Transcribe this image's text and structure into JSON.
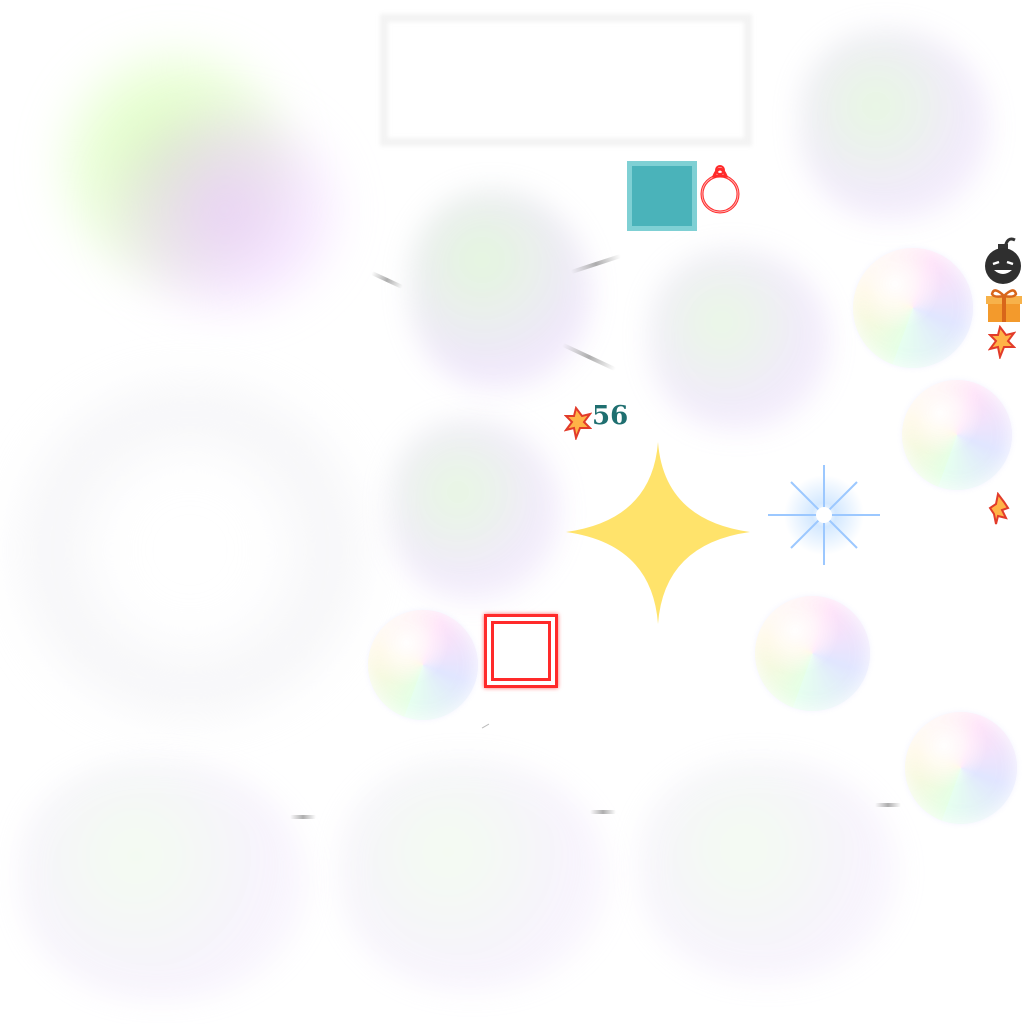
{
  "hud": {
    "score_value": "56"
  },
  "colors": {
    "tile": "#4ab3ba",
    "tile_border": "#7fd0d4",
    "sparkle": "#ffe36b",
    "counter_text": "#1f6f70",
    "red_outline": "#ff2a2a"
  },
  "icons": {
    "counter": "leaf-icon",
    "bomb": "bomb-icon",
    "gift": "gift-icon",
    "ring": "ring-icon",
    "star": "four-point-star-icon",
    "burst": "blue-burst-icon"
  }
}
